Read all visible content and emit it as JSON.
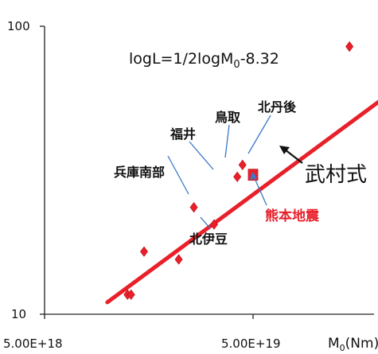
{
  "page_header": "",
  "chart_data": {
    "type": "scatter",
    "x_scale": "log",
    "y_scale": "log",
    "xlim": [
      5e+18,
      2e+20
    ],
    "ylim": [
      10,
      100
    ],
    "x_tick_labels": [
      "5.00E+18",
      "5.00E+19"
    ],
    "x_tick_values": [
      5e+18,
      5e+19
    ],
    "y_tick_labels": [
      "100",
      "10"
    ],
    "y_tick_values": [
      100,
      10
    ],
    "xlabel": "M0(Nm)",
    "xlabel_main": "M",
    "xlabel_sub": "0",
    "xlabel_unit": "(Nm)",
    "grid": false,
    "formula": {
      "pre": "logL=1/2logM",
      "sub": "0",
      "post": "-8.32"
    },
    "series": [
      {
        "marker": "diamond",
        "color": "#e8202a",
        "points": [
          {
            "x": 1.25e+19,
            "y": 11.7
          },
          {
            "x": 1.3e+19,
            "y": 11.7
          },
          {
            "x": 1.5e+19,
            "y": 16.5
          },
          {
            "x": 2.2e+19,
            "y": 15.5
          },
          {
            "x": 2.6e+19,
            "y": 23.5
          },
          {
            "x": 3.25e+19,
            "y": 20.5
          },
          {
            "x": 4.2e+19,
            "y": 30.0
          },
          {
            "x": 4.45e+19,
            "y": 33.0
          },
          {
            "x": 1.45e+20,
            "y": 85.0
          }
        ]
      },
      {
        "marker": "square",
        "color": "#e8202a",
        "points": [
          {
            "x": 5e+19,
            "y": 30.5
          }
        ]
      }
    ],
    "fit_line": {
      "color": "#e8202a",
      "points": [
        {
          "x": 1e+19,
          "y": 11.0
        },
        {
          "x": 2.2e+20,
          "y": 57.5
        }
      ]
    },
    "annotations": [
      {
        "text": "福井",
        "style": "label"
      },
      {
        "text": "鳥取",
        "style": "label"
      },
      {
        "text": "北丹後",
        "style": "label"
      },
      {
        "text": "兵庫南部",
        "style": "label"
      },
      {
        "text": "北伊豆",
        "style": "label"
      },
      {
        "text": "武村式",
        "style": "big"
      },
      {
        "text": "熊本地震",
        "style": "red"
      }
    ]
  }
}
